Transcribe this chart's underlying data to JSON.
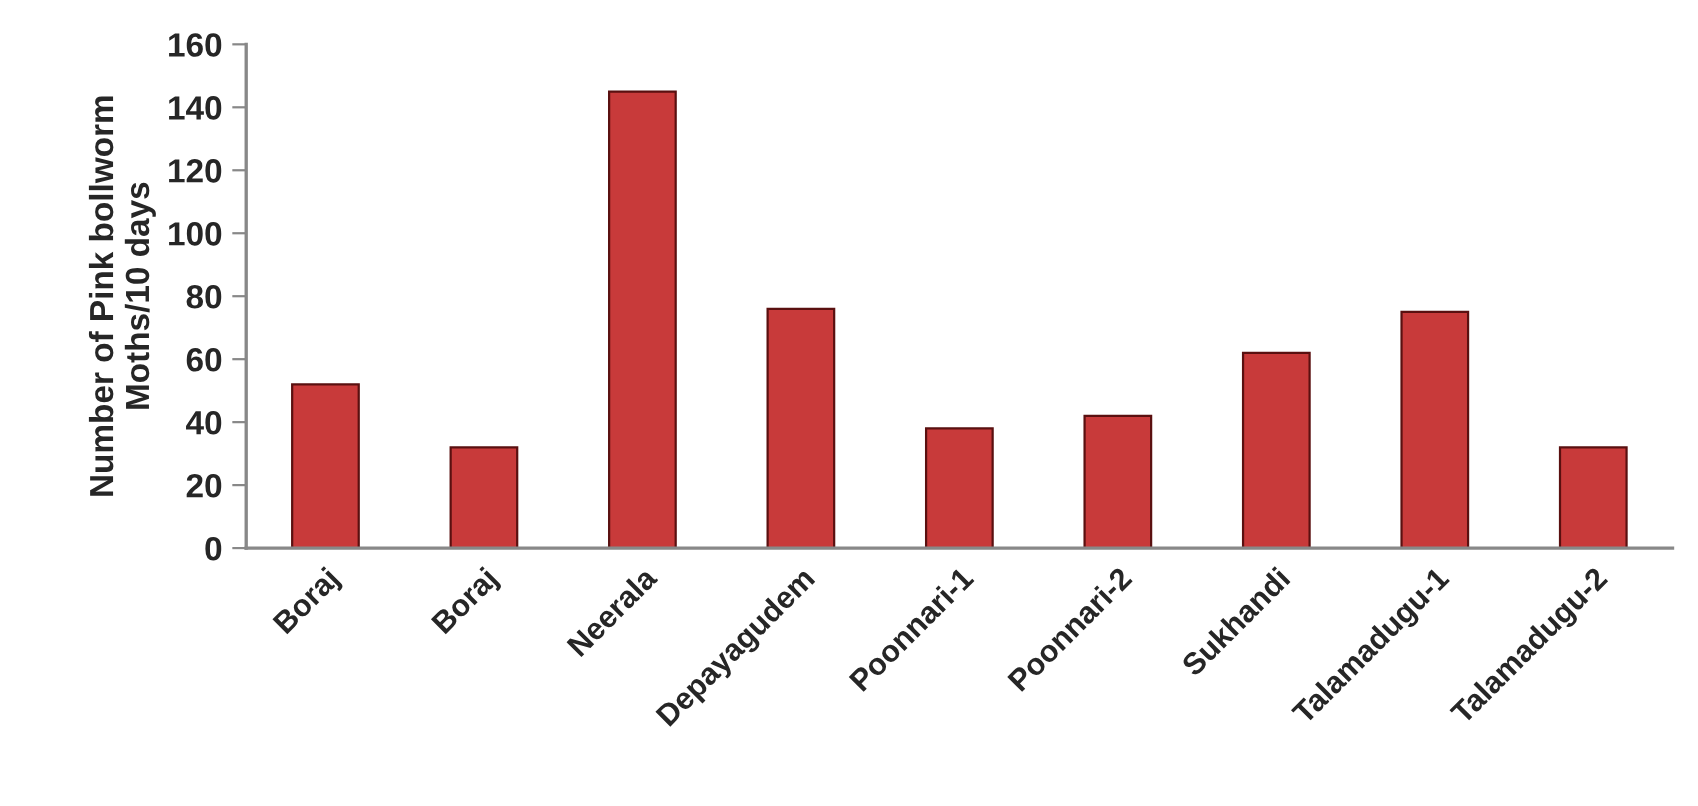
{
  "chart_data": {
    "type": "bar",
    "ylabel": "Number of Pink bollworm\nMoths/10 days",
    "categories": [
      "Boraj",
      "Boraj",
      "Neerala",
      "Depayagudem",
      "Poonnari-1",
      "Poonnari-2",
      "Sukhandi",
      "Talamadugu-1",
      "Talamadugu-2"
    ],
    "values": [
      52,
      32,
      145,
      76,
      38,
      42,
      62,
      75,
      32
    ],
    "color": "#c83a3a",
    "ylim": [
      0,
      160
    ],
    "yticks": [
      0,
      20,
      40,
      60,
      80,
      100,
      120,
      140,
      160
    ],
    "grid": false
  }
}
